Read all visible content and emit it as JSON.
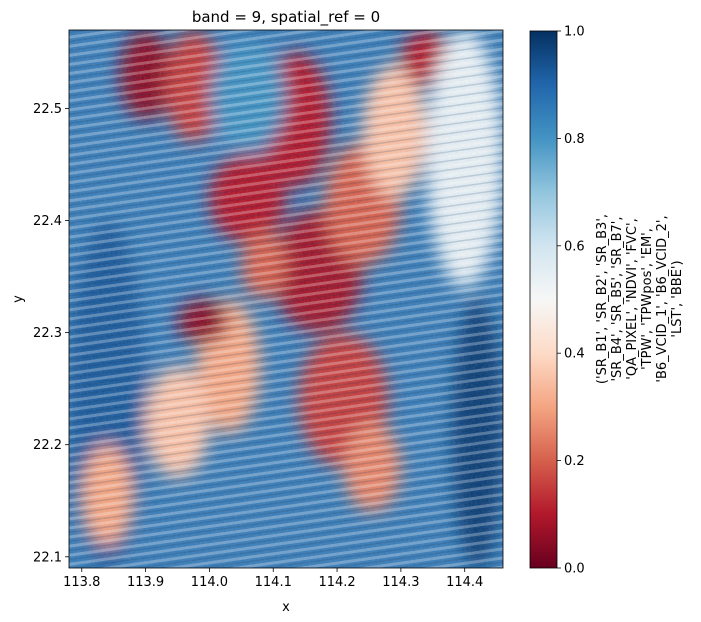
{
  "chart_data": {
    "type": "heatmap",
    "title": "band = 9, spatial_ref = 0",
    "xlabel": "x",
    "ylabel": "y",
    "xlim": [
      113.78,
      114.46
    ],
    "ylim": [
      22.09,
      22.57
    ],
    "x_ticks": [
      113.8,
      113.9,
      114.0,
      114.1,
      114.2,
      114.3,
      114.4
    ],
    "x_tick_labels": [
      "113.8",
      "113.9",
      "114.0",
      "114.1",
      "114.2",
      "114.3",
      "114.4"
    ],
    "y_ticks": [
      22.1,
      22.2,
      22.3,
      22.4,
      22.5
    ],
    "y_tick_labels": [
      "22.1",
      "22.2",
      "22.3",
      "22.4",
      "22.5"
    ],
    "colorbar": {
      "label_lines": [
        "('SR_B1', 'SR_B2', 'SR_B3',",
        "'SR_B4', 'SR_B5', 'SR_B7',",
        "'QA_PIXEL', 'NDVI', 'FVC',",
        "'TPW', 'TPWpos', 'EM',",
        "'B6_VCID_1', 'B6_VCID_2',",
        "'LST', 'BBE')"
      ],
      "range": [
        0.0,
        1.0
      ],
      "ticks": [
        0.0,
        0.2,
        0.4,
        0.6,
        0.8,
        1.0
      ],
      "tick_labels": [
        "0.0",
        "0.2",
        "0.4",
        "0.6",
        "0.8",
        "1.0"
      ],
      "colormap": "RdBu",
      "colors": [
        "#67001f",
        "#b2182b",
        "#d6604d",
        "#f4a582",
        "#fddbc7",
        "#f7f7f7",
        "#d1e5f0",
        "#92c5de",
        "#4393c3",
        "#2166ac",
        "#053061"
      ]
    },
    "grid": false,
    "regions": [
      {
        "x": [
          113.86,
          113.94
        ],
        "y": [
          22.49,
          22.57
        ],
        "value": 0.05
      },
      {
        "x": [
          113.93,
          114.02
        ],
        "y": [
          22.47,
          22.57
        ],
        "value": 0.15
      },
      {
        "x": [
          114.0,
          114.12
        ],
        "y": [
          22.38,
          22.46
        ],
        "value": 0.1
      },
      {
        "x": [
          114.08,
          114.19
        ],
        "y": [
          22.43,
          22.55
        ],
        "value": 0.1
      },
      {
        "x": [
          114.1,
          114.24
        ],
        "y": [
          22.3,
          22.41
        ],
        "value": 0.08
      },
      {
        "x": [
          114.18,
          114.3
        ],
        "y": [
          22.36,
          22.47
        ],
        "value": 0.2
      },
      {
        "x": [
          114.24,
          114.34
        ],
        "y": [
          22.42,
          22.54
        ],
        "value": 0.35
      },
      {
        "x": [
          114.3,
          114.38
        ],
        "y": [
          22.52,
          22.57
        ],
        "value": 0.1
      },
      {
        "x": [
          114.14,
          114.28
        ],
        "y": [
          22.18,
          22.3
        ],
        "value": 0.15
      },
      {
        "x": [
          114.21,
          114.3
        ],
        "y": [
          22.14,
          22.22
        ],
        "value": 0.25
      },
      {
        "x": [
          113.98,
          114.08
        ],
        "y": [
          22.21,
          22.33
        ],
        "value": 0.3
      },
      {
        "x": [
          113.9,
          114.0
        ],
        "y": [
          22.17,
          22.27
        ],
        "value": 0.35
      },
      {
        "x": [
          113.95,
          114.03
        ],
        "y": [
          22.29,
          22.33
        ],
        "value": 0.05
      },
      {
        "x": [
          114.05,
          114.12
        ],
        "y": [
          22.33,
          22.39
        ],
        "value": 0.2
      },
      {
        "x": [
          114.38,
          114.46
        ],
        "y": [
          22.09,
          22.33
        ],
        "value": 0.97
      },
      {
        "x": [
          113.78,
          113.9
        ],
        "y": [
          22.09,
          22.4
        ],
        "value": 0.92
      },
      {
        "x": [
          113.8,
          113.88
        ],
        "y": [
          22.11,
          22.2
        ],
        "value": 0.3
      },
      {
        "x": [
          114.34,
          114.46
        ],
        "y": [
          22.34,
          22.57
        ],
        "value": 0.55
      },
      {
        "x": [
          114.0,
          114.12
        ],
        "y": [
          22.46,
          22.56
        ],
        "value": 0.8
      }
    ]
  }
}
